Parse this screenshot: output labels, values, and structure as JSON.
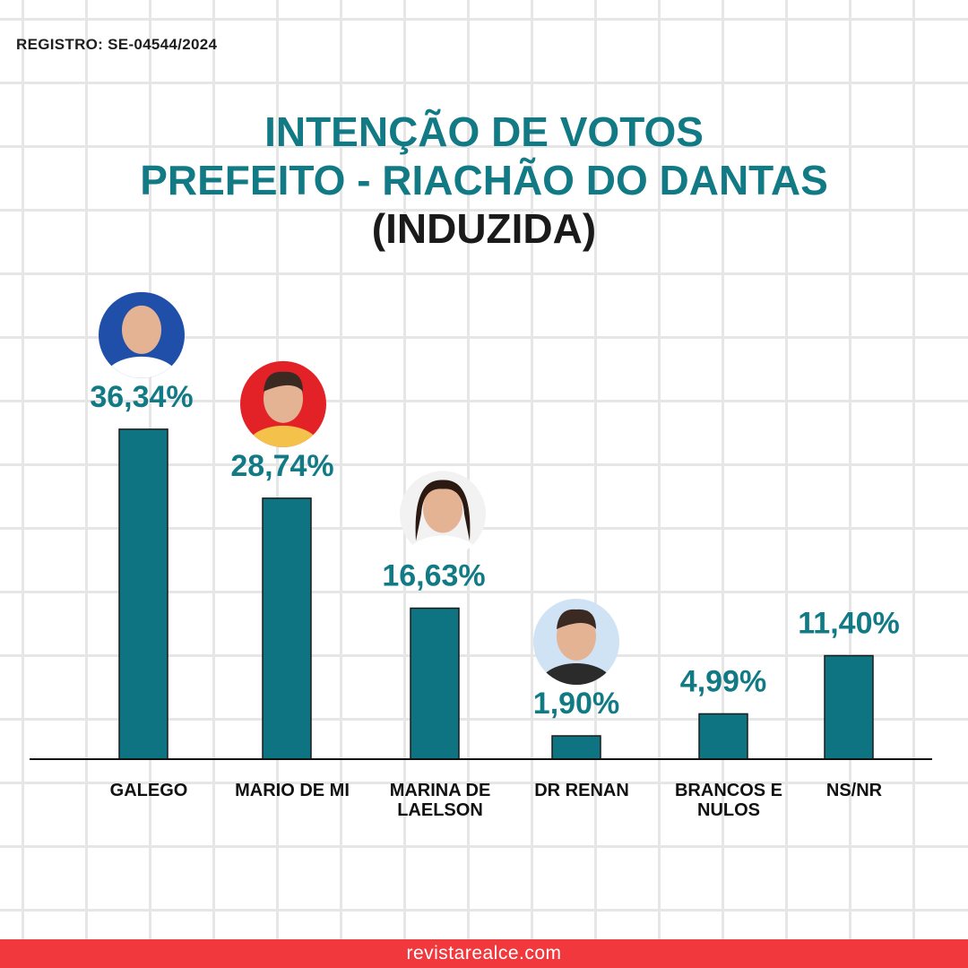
{
  "registro": "REGISTRO: SE-04544/2024",
  "title": {
    "line1": "INTENÇÃO DE VOTOS",
    "line2": "PREFEITO - RIACHÃO DO DANTAS",
    "line3": "(INDUZIDA)"
  },
  "footer": {
    "site": "revistarealce.com"
  },
  "colors": {
    "bar": "#0e7482",
    "title": "#117a85",
    "footer": "#f0383d"
  },
  "chart_data": {
    "type": "bar",
    "categories": [
      [
        "GALEGO"
      ],
      [
        "MARIO DE MI"
      ],
      [
        "MARINA DE",
        "LAELSON"
      ],
      [
        "DR RENAN"
      ],
      [
        "BRANCOS E",
        "NULOS"
      ],
      [
        "NS/NR"
      ]
    ],
    "values": [
      36.34,
      28.74,
      16.63,
      1.9,
      4.99,
      11.4
    ],
    "value_labels": [
      "36,34%",
      "28,74%",
      "16,63%",
      "1,90%",
      "4,99%",
      "11,40%"
    ],
    "has_photo": [
      true,
      true,
      true,
      true,
      false,
      false
    ],
    "ylim": [
      0,
      40
    ],
    "grid": false,
    "legend": "none"
  }
}
